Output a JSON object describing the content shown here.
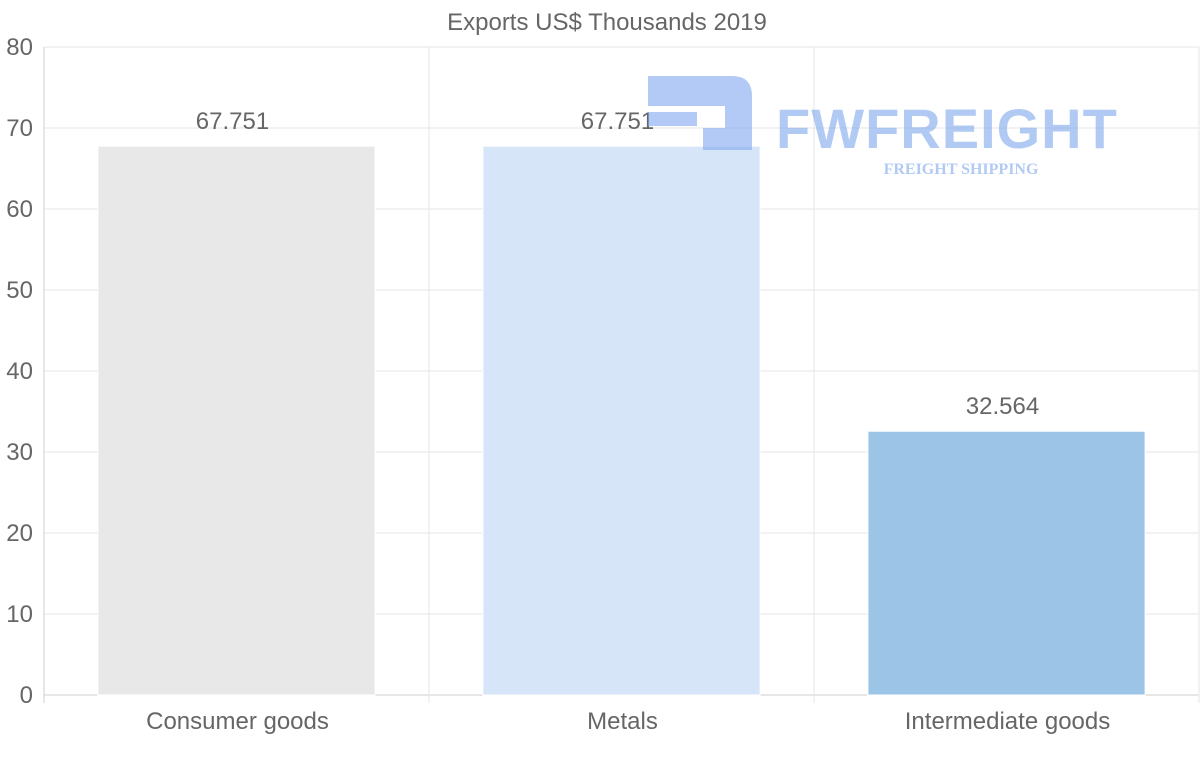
{
  "chart_data": {
    "type": "bar",
    "title": "Exports US$ Thousands 2019",
    "categories": [
      "Consumer goods",
      "Metals",
      "Intermediate goods"
    ],
    "values": [
      67.751,
      67.751,
      32.564
    ],
    "data_labels": [
      "67.751",
      "67.751",
      "32.564"
    ],
    "colors": [
      "#e8e8e8",
      "#d6e6f8",
      "#9bc4e7"
    ],
    "ylim": [
      0,
      80
    ],
    "yticks": [
      0,
      10,
      20,
      30,
      40,
      50,
      60,
      70,
      80
    ],
    "xlabel": "",
    "ylabel": "",
    "grid": true
  },
  "watermark": {
    "brand": "FWFREIGHT",
    "tagline": "FREIGHT SHIPPING",
    "color": "#7ea7ee"
  }
}
